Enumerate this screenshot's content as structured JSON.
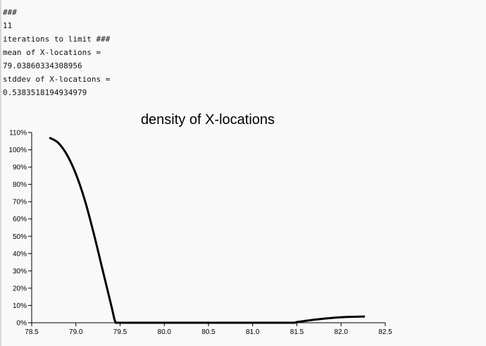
{
  "log": {
    "line1": "###",
    "line2": "11",
    "line3": "iterations to limit ###",
    "line4": "mean of X-locations =",
    "line5": "79.03860334308956",
    "line6": "stddev of X-locations =",
    "line7": "0.5383518194934979"
  },
  "chart_data": {
    "type": "line",
    "title": "density of X-locations",
    "xlabel": "",
    "ylabel": "",
    "xlim": [
      78.5,
      82.5
    ],
    "ylim": [
      0,
      1.1
    ],
    "grid": false,
    "x_ticks": [
      "78.5",
      "79.0",
      "79.5",
      "80.0",
      "80.5",
      "81.0",
      "81.5",
      "82.0",
      "82.5"
    ],
    "y_ticks": [
      "0%",
      "10%",
      "20%",
      "30%",
      "40%",
      "50%",
      "60%",
      "70%",
      "80%",
      "90%",
      "100%",
      "110%"
    ],
    "series": [
      {
        "color": "#000000",
        "x": [
          78.7,
          78.8,
          78.9,
          79.0,
          79.1,
          79.2,
          79.3,
          79.4,
          79.45,
          79.5,
          80.0,
          80.5,
          81.0,
          81.45,
          81.5,
          81.7,
          81.9,
          82.1,
          82.27
        ],
        "y": [
          1.07,
          1.04,
          0.97,
          0.86,
          0.71,
          0.52,
          0.31,
          0.1,
          0.0,
          0.0,
          0.0,
          0.0,
          0.0,
          0.0,
          0.004,
          0.018,
          0.028,
          0.034,
          0.036
        ]
      }
    ]
  }
}
